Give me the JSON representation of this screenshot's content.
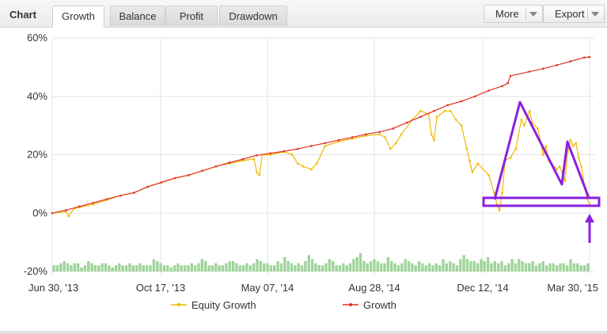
{
  "header": {
    "title": "Chart",
    "tabs": [
      {
        "label": "Growth",
        "active": true
      },
      {
        "label": "Balance",
        "active": false
      },
      {
        "label": "Profit",
        "active": false
      },
      {
        "label": "Drawdown",
        "active": false
      }
    ],
    "more_label": "More",
    "export_label": "Export"
  },
  "colors": {
    "equity": "#f2b800",
    "growth": "#dd3322",
    "bars": "#9fd49a",
    "annotation": "#8a1fe0",
    "grid": "#e3e3e3"
  },
  "chart_data": {
    "type": "line",
    "x_tick_labels": [
      "Jun 30, '13",
      "Oct 17, '13",
      "May 07, '14",
      "Aug 28, '14",
      "Dec 12, '14",
      "Mar 30, '15"
    ],
    "y_tick_labels": [
      "60%",
      "40%",
      "20%",
      "0%",
      "-20%"
    ],
    "ylim": [
      -20,
      60
    ],
    "grid": true,
    "legend_position": "bottom-center",
    "series": [
      {
        "name": "Growth",
        "points": [
          [
            0,
            0
          ],
          [
            5,
            1
          ],
          [
            10,
            2.3
          ],
          [
            15,
            3.5
          ],
          [
            20,
            4.8
          ],
          [
            25,
            6
          ],
          [
            30,
            7
          ],
          [
            35,
            9
          ],
          [
            40,
            10.5
          ],
          [
            45,
            12
          ],
          [
            50,
            13
          ],
          [
            55,
            14.5
          ],
          [
            60,
            16
          ],
          [
            65,
            17.3
          ],
          [
            70,
            18.5
          ],
          [
            75,
            19.8
          ],
          [
            80,
            20.5
          ],
          [
            85,
            21.2
          ],
          [
            90,
            22
          ],
          [
            95,
            23
          ],
          [
            100,
            24
          ],
          [
            105,
            25
          ],
          [
            110,
            26
          ],
          [
            115,
            27
          ],
          [
            120,
            27.8
          ],
          [
            125,
            29
          ],
          [
            130,
            31
          ],
          [
            135,
            33
          ],
          [
            140,
            35
          ],
          [
            145,
            37
          ],
          [
            150,
            38.3
          ],
          [
            155,
            40
          ],
          [
            160,
            42
          ],
          [
            165,
            43.5
          ],
          [
            167,
            44.5
          ],
          [
            168,
            47
          ],
          [
            175,
            48.5
          ],
          [
            180,
            49.5
          ],
          [
            185,
            50.7
          ],
          [
            190,
            52
          ],
          [
            195,
            53.3
          ],
          [
            197,
            53.5
          ]
        ]
      },
      {
        "name": "Equity Growth",
        "points": [
          [
            0,
            0
          ],
          [
            5,
            0.5
          ],
          [
            6,
            -1
          ],
          [
            8,
            1.5
          ],
          [
            10,
            2
          ],
          [
            15,
            3
          ],
          [
            20,
            4.5
          ],
          [
            25,
            6
          ],
          [
            30,
            7
          ],
          [
            35,
            9
          ],
          [
            40,
            10.5
          ],
          [
            45,
            12
          ],
          [
            50,
            13
          ],
          [
            55,
            14.5
          ],
          [
            60,
            16
          ],
          [
            65,
            17
          ],
          [
            70,
            18
          ],
          [
            74,
            18.5
          ],
          [
            75,
            14
          ],
          [
            76,
            13
          ],
          [
            77,
            20
          ],
          [
            80,
            20
          ],
          [
            85,
            21
          ],
          [
            88,
            20
          ],
          [
            90,
            17
          ],
          [
            92,
            16
          ],
          [
            95,
            15
          ],
          [
            97,
            17
          ],
          [
            100,
            23
          ],
          [
            105,
            24.5
          ],
          [
            110,
            25.5
          ],
          [
            115,
            26.5
          ],
          [
            120,
            27
          ],
          [
            122,
            26
          ],
          [
            124,
            22
          ],
          [
            126,
            24
          ],
          [
            128,
            27
          ],
          [
            132,
            32
          ],
          [
            135,
            35
          ],
          [
            138,
            34
          ],
          [
            139,
            27
          ],
          [
            140,
            25
          ],
          [
            141,
            33
          ],
          [
            144,
            35
          ],
          [
            146,
            35
          ],
          [
            148,
            32
          ],
          [
            150,
            30
          ],
          [
            152,
            22
          ],
          [
            153,
            18
          ],
          [
            154,
            14
          ],
          [
            156,
            17
          ],
          [
            160,
            13
          ],
          [
            162,
            7
          ],
          [
            163,
            3
          ],
          [
            164,
            1
          ],
          [
            165,
            7
          ],
          [
            166,
            18
          ],
          [
            168,
            19
          ],
          [
            170,
            22
          ],
          [
            172,
            32
          ],
          [
            173,
            30
          ],
          [
            175,
            35
          ],
          [
            176,
            31
          ],
          [
            178,
            29
          ],
          [
            180,
            20
          ],
          [
            181,
            23
          ],
          [
            182,
            18
          ],
          [
            183,
            17
          ],
          [
            185,
            15
          ],
          [
            186,
            16
          ],
          [
            187,
            14
          ],
          [
            188,
            11
          ],
          [
            189,
            21
          ],
          [
            190,
            25
          ],
          [
            191,
            23
          ],
          [
            192,
            24
          ],
          [
            193,
            19
          ],
          [
            194,
            16
          ],
          [
            195,
            10
          ],
          [
            196,
            5
          ],
          [
            197,
            3
          ]
        ]
      },
      {
        "name": "",
        "type": "bar",
        "note_axis": "volume-like activity bars along the bottom",
        "values": [
          3,
          3,
          4,
          5,
          4,
          3,
          4,
          4,
          2,
          3,
          5,
          4,
          3,
          3,
          4,
          4,
          3,
          2,
          3,
          4,
          3,
          3,
          4,
          3,
          3,
          4,
          3,
          3,
          3,
          6,
          5,
          4,
          3,
          3,
          2,
          3,
          4,
          3,
          3,
          3,
          4,
          3,
          4,
          6,
          5,
          3,
          3,
          4,
          3,
          3,
          4,
          5,
          5,
          4,
          3,
          3,
          4,
          3,
          4,
          6,
          5,
          4,
          4,
          3,
          3,
          5,
          4,
          7,
          5,
          4,
          3,
          4,
          3,
          5,
          8,
          6,
          4,
          3,
          3,
          4,
          6,
          5,
          3,
          3,
          4,
          3,
          4,
          6,
          7,
          9,
          5,
          4,
          5,
          6,
          5,
          4,
          4,
          7,
          5,
          4,
          3,
          4,
          6,
          5,
          4,
          3,
          5,
          4,
          3,
          4,
          3,
          4,
          3,
          6,
          4,
          5,
          4,
          3,
          6,
          8,
          6,
          5,
          5,
          4,
          6,
          5,
          7,
          4,
          5,
          4,
          5,
          3,
          4,
          6,
          4,
          6,
          5,
          4,
          4,
          5,
          3,
          4,
          5,
          3,
          4,
          4,
          3,
          4,
          4,
          3,
          6,
          4,
          4,
          3,
          3,
          4
        ]
      }
    ],
    "x_axis_days_range": [
      0,
      197
    ]
  },
  "legend": {
    "equity_label": "Equity Growth",
    "growth_label": "Growth"
  }
}
